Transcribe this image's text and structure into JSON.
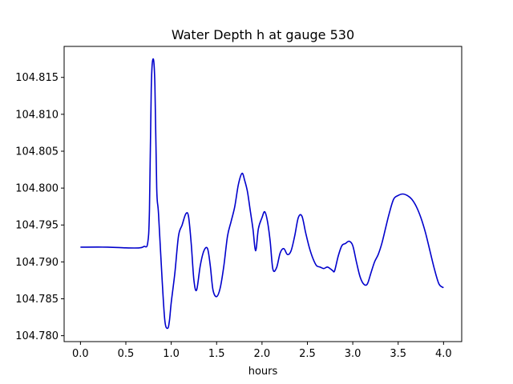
{
  "chart_data": {
    "type": "line",
    "title": "Water Depth h at gauge 530",
    "xlabel": "hours",
    "ylabel": "",
    "xlim": [
      -0.18,
      4.2
    ],
    "ylim": [
      104.7792,
      104.8192
    ],
    "xticks": [
      0.0,
      0.5,
      1.0,
      1.5,
      2.0,
      2.5,
      3.0,
      3.5,
      4.0
    ],
    "xtick_labels": [
      "0.0",
      "0.5",
      "1.0",
      "1.5",
      "2.0",
      "2.5",
      "3.0",
      "3.5",
      "4.0"
    ],
    "yticks": [
      104.78,
      104.785,
      104.79,
      104.795,
      104.8,
      104.805,
      104.81,
      104.815
    ],
    "ytick_labels": [
      "104.780",
      "104.785",
      "104.790",
      "104.795",
      "104.800",
      "104.805",
      "104.810",
      "104.815"
    ],
    "grid": false,
    "series": [
      {
        "color": "#0000cc",
        "x": [
          0.0,
          0.3,
          0.5,
          0.65,
          0.7,
          0.74,
          0.76,
          0.78,
          0.8,
          0.82,
          0.84,
          0.86,
          0.9,
          0.93,
          0.96,
          0.98,
          1.0,
          1.04,
          1.08,
          1.12,
          1.16,
          1.19,
          1.22,
          1.25,
          1.28,
          1.32,
          1.36,
          1.4,
          1.43,
          1.46,
          1.5,
          1.54,
          1.58,
          1.62,
          1.66,
          1.7,
          1.74,
          1.78,
          1.81,
          1.84,
          1.87,
          1.9,
          1.93,
          1.96,
          2.0,
          2.03,
          2.06,
          2.09,
          2.12,
          2.16,
          2.2,
          2.24,
          2.28,
          2.32,
          2.36,
          2.4,
          2.44,
          2.48,
          2.52,
          2.56,
          2.6,
          2.64,
          2.68,
          2.72,
          2.76,
          2.78,
          2.8,
          2.84,
          2.88,
          2.92,
          2.96,
          3.0,
          3.04,
          3.08,
          3.12,
          3.16,
          3.2,
          3.24,
          3.28,
          3.32,
          3.36,
          3.4,
          3.45,
          3.5,
          3.55,
          3.6,
          3.65,
          3.7,
          3.75,
          3.8,
          3.85,
          3.9,
          3.95,
          4.0
        ],
        "y": [
          104.792,
          104.792,
          104.7919,
          104.7919,
          104.7921,
          104.7925,
          104.797,
          104.8135,
          104.8175,
          104.814,
          104.8,
          104.7965,
          104.7875,
          104.782,
          104.781,
          104.782,
          104.7845,
          104.7885,
          104.7935,
          104.795,
          104.7965,
          104.7962,
          104.7925,
          104.7875,
          104.7862,
          104.7895,
          104.7915,
          104.7918,
          104.7895,
          104.7862,
          104.7853,
          104.7865,
          104.7895,
          104.7935,
          104.7955,
          104.7975,
          104.8005,
          104.802,
          104.801,
          104.7995,
          104.797,
          104.7945,
          104.7915,
          104.7945,
          104.796,
          104.7968,
          104.7955,
          104.7928,
          104.789,
          104.7892,
          104.7912,
          104.7918,
          104.791,
          104.7915,
          104.7935,
          104.796,
          104.7962,
          104.794,
          104.792,
          104.7905,
          104.7895,
          104.7893,
          104.7891,
          104.7893,
          104.789,
          104.7888,
          104.7888,
          104.7908,
          104.7922,
          104.7925,
          104.7928,
          104.7922,
          104.79,
          104.788,
          104.787,
          104.787,
          104.7885,
          104.79,
          104.791,
          104.7925,
          104.7945,
          104.7965,
          104.7985,
          104.799,
          104.7992,
          104.799,
          104.7985,
          104.7975,
          104.796,
          104.794,
          104.7915,
          104.789,
          104.787,
          104.7865
        ]
      }
    ]
  }
}
